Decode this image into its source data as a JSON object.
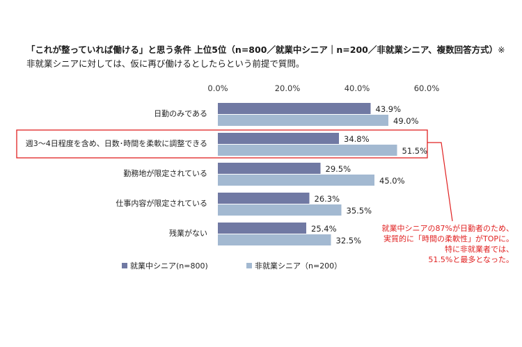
{
  "header": {
    "title": "「これが整っていれば働ける」と思う条件 上位5位（n=800／就業中シニア｜n=200／非就業シニア、複数回答方式）",
    "note": "※非就業シニアに対しては、仮に再び働けるとしたらという前提で質問。"
  },
  "chart_data": {
    "type": "bar",
    "orientation": "horizontal",
    "categories": [
      "日勤のみである",
      "週3～4日程度を含め、日数･時間を柔軟に調整できる",
      "勤務地が限定されている",
      "仕事内容が限定されている",
      "残業がない"
    ],
    "series": [
      {
        "name": "就業中シニア(n=800)",
        "values": [
          43.9,
          34.8,
          29.5,
          26.3,
          25.4
        ],
        "labels": [
          "43.9%",
          "34.8%",
          "29.5%",
          "26.3%",
          "25.4%"
        ]
      },
      {
        "name": "非就業シニア（n=200）",
        "values": [
          49.0,
          51.5,
          45.0,
          35.5,
          32.5
        ],
        "labels": [
          "49.0%",
          "51.5%",
          "45.0%",
          "35.5%",
          "32.5%"
        ]
      }
    ],
    "xlim": [
      0,
      60
    ],
    "xticks": [
      "0.0%",
      "20.0%",
      "40.0%",
      "60.0%"
    ],
    "tick_values": [
      0,
      20,
      40,
      60
    ],
    "colors": [
      "#7079a3",
      "#a3b9d1"
    ],
    "highlight_category": 1,
    "highlight_color": "#e02020",
    "legend_position": "bottom-left",
    "annotation": [
      "就業中シニアの87%が日勤者のため、",
      "実質的に「時間の柔軟性」がTOPに。",
      "特に非就業者では、",
      "51.5%と最多となった。"
    ]
  }
}
